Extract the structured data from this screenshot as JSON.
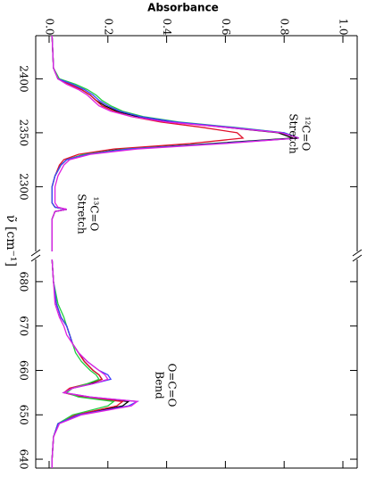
{
  "chart_data": [
    {
      "type": "line",
      "ylabel": "Absorbance",
      "xlabel": "ν̃ [cm⁻¹]",
      "ylim": [
        0,
        1
      ],
      "yticks": [
        {
          "value": 0,
          "label": "0.0"
        },
        {
          "value": 0.2,
          "label": "0.2"
        },
        {
          "value": 0.4,
          "label": "0.4"
        },
        {
          "value": 0.6,
          "label": "0.6"
        },
        {
          "value": 0.8,
          "label": "0.8"
        },
        {
          "value": 1,
          "label": "1.0"
        }
      ],
      "xlim": [
        2440,
        2240
      ],
      "xticks": [
        2400,
        2350,
        2300
      ],
      "x": [
        2440,
        2410,
        2400,
        2395,
        2390,
        2385,
        2380,
        2375,
        2370,
        2365,
        2360,
        2355,
        2350,
        2345,
        2340,
        2335,
        2330,
        2325,
        2320,
        2310,
        2300,
        2285,
        2281,
        2279,
        2277,
        2270,
        2240
      ],
      "series": [
        {
          "color": "#000000",
          "values": [
            0.01,
            0.015,
            0.03,
            0.07,
            0.11,
            0.14,
            0.16,
            0.19,
            0.23,
            0.3,
            0.42,
            0.6,
            0.78,
            0.83,
            0.55,
            0.25,
            0.12,
            0.06,
            0.04,
            0.02,
            0.01,
            0.01,
            0.02,
            0.06,
            0.02,
            0.01,
            0.01
          ]
        },
        {
          "color": "#e0102a",
          "values": [
            0.01,
            0.015,
            0.03,
            0.07,
            0.11,
            0.14,
            0.16,
            0.18,
            0.22,
            0.28,
            0.38,
            0.52,
            0.64,
            0.66,
            0.48,
            0.22,
            0.1,
            0.05,
            0.035,
            0.02,
            0.01,
            0.01,
            0.02,
            0.06,
            0.02,
            0.01,
            0.01
          ]
        },
        {
          "color": "#20d040",
          "values": [
            0.01,
            0.015,
            0.035,
            0.09,
            0.13,
            0.16,
            0.18,
            0.21,
            0.25,
            0.32,
            0.44,
            0.63,
            0.8,
            0.85,
            0.57,
            0.26,
            0.12,
            0.06,
            0.04,
            0.02,
            0.01,
            0.01,
            0.02,
            0.06,
            0.02,
            0.01,
            0.01
          ]
        },
        {
          "color": "#4040ff",
          "values": [
            0.01,
            0.015,
            0.03,
            0.08,
            0.12,
            0.15,
            0.17,
            0.2,
            0.24,
            0.31,
            0.43,
            0.62,
            0.8,
            0.85,
            0.58,
            0.27,
            0.13,
            0.06,
            0.04,
            0.02,
            0.01,
            0.01,
            0.02,
            0.06,
            0.02,
            0.01,
            0.01
          ]
        },
        {
          "color": "#e020e0",
          "values": [
            0.01,
            0.015,
            0.03,
            0.06,
            0.1,
            0.13,
            0.15,
            0.17,
            0.21,
            0.28,
            0.4,
            0.6,
            0.79,
            0.85,
            0.6,
            0.3,
            0.14,
            0.07,
            0.05,
            0.03,
            0.02,
            0.02,
            0.03,
            0.06,
            0.02,
            0.01,
            0.01
          ]
        }
      ],
      "annotations": [
        [
          "¹²C=O",
          "Stretch"
        ],
        [
          "¹³C=O",
          "Stretch"
        ]
      ]
    },
    {
      "type": "line",
      "xlim": [
        685,
        638
      ],
      "xticks": [
        680,
        670,
        660,
        650,
        640
      ],
      "x": [
        685,
        680,
        675,
        672,
        670,
        668,
        666,
        664,
        662,
        660,
        659,
        658,
        657,
        656,
        655,
        654,
        653,
        652,
        650,
        648,
        645,
        640,
        638
      ],
      "series": [
        {
          "color": "#000000",
          "values": [
            0.01,
            0.015,
            0.025,
            0.04,
            0.06,
            0.07,
            0.08,
            0.1,
            0.12,
            0.15,
            0.17,
            0.18,
            0.14,
            0.08,
            0.05,
            0.12,
            0.27,
            0.25,
            0.1,
            0.03,
            0.015,
            0.01,
            0.01
          ]
        },
        {
          "color": "#e0102a",
          "values": [
            0.01,
            0.015,
            0.025,
            0.04,
            0.06,
            0.07,
            0.08,
            0.1,
            0.12,
            0.15,
            0.17,
            0.18,
            0.13,
            0.07,
            0.05,
            0.11,
            0.25,
            0.23,
            0.09,
            0.03,
            0.015,
            0.01,
            0.01
          ]
        },
        {
          "color": "#20d040",
          "values": [
            0.01,
            0.015,
            0.03,
            0.05,
            0.06,
            0.07,
            0.08,
            0.09,
            0.11,
            0.14,
            0.16,
            0.17,
            0.13,
            0.08,
            0.06,
            0.1,
            0.22,
            0.2,
            0.08,
            0.03,
            0.015,
            0.01,
            0.01
          ]
        },
        {
          "color": "#4040ff",
          "values": [
            0.01,
            0.015,
            0.025,
            0.04,
            0.06,
            0.07,
            0.08,
            0.1,
            0.13,
            0.17,
            0.2,
            0.21,
            0.15,
            0.08,
            0.05,
            0.14,
            0.3,
            0.27,
            0.1,
            0.03,
            0.015,
            0.01,
            0.01
          ]
        },
        {
          "color": "#e020e0",
          "values": [
            0.01,
            0.015,
            0.02,
            0.035,
            0.05,
            0.06,
            0.08,
            0.1,
            0.13,
            0.17,
            0.19,
            0.2,
            0.15,
            0.08,
            0.05,
            0.14,
            0.3,
            0.28,
            0.11,
            0.035,
            0.015,
            0.01,
            0.01
          ]
        }
      ],
      "annotations": [
        [
          "O=C=O",
          "Bend"
        ]
      ]
    }
  ]
}
